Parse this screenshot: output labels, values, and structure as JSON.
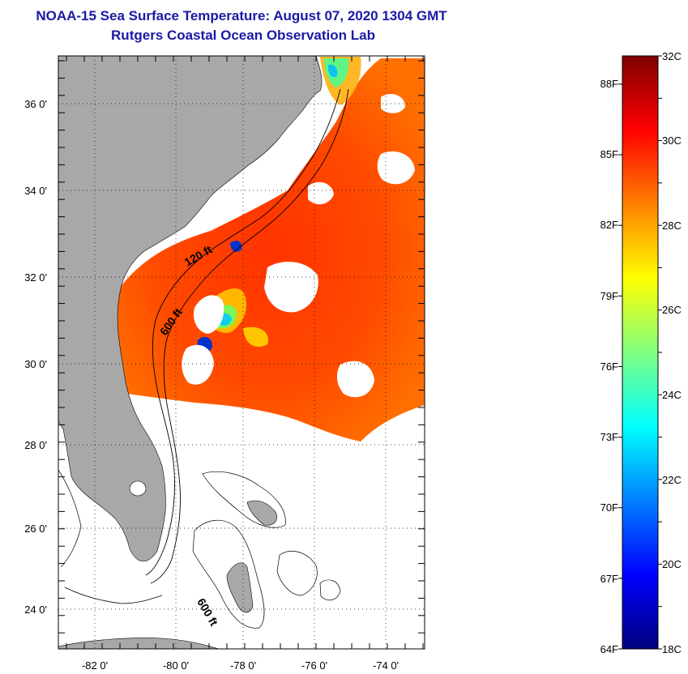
{
  "title": "NOAA-15 Sea Surface Temperature:  August 07, 2020 1304 GMT",
  "subtitle": "Rutgers Coastal Ocean Observation Lab",
  "map": {
    "lat_labels": [
      "36 0'",
      "34 0'",
      "32 0'",
      "30 0'",
      "28 0'",
      "26 0'",
      "24 0'"
    ],
    "lon_labels": [
      "-82 0'",
      "-80 0'",
      "-78 0'",
      "-76 0'",
      "-74 0'"
    ],
    "lat_range": [
      23,
      37.1
    ],
    "lon_range": [
      -83,
      -72.9
    ],
    "contour_labels": [
      "120 ft",
      "600 ft",
      "600 ft"
    ],
    "colors": {
      "land": "#a8a8a8",
      "no_data": "#ffffff",
      "contour": "#000000"
    }
  },
  "colorbar": {
    "celsius_labels": [
      "32C",
      "30C",
      "28C",
      "26C",
      "24C",
      "22C",
      "20C",
      "18C"
    ],
    "fahrenheit_labels": [
      "88F",
      "85F",
      "82F",
      "79F",
      "76F",
      "73F",
      "70F",
      "67F",
      "64F"
    ],
    "range_c": [
      18,
      32
    ],
    "colors": [
      "#00007f",
      "#0000ff",
      "#0080ff",
      "#00ffff",
      "#80ff80",
      "#ffff00",
      "#ff8000",
      "#ff0000",
      "#7f0000"
    ]
  }
}
